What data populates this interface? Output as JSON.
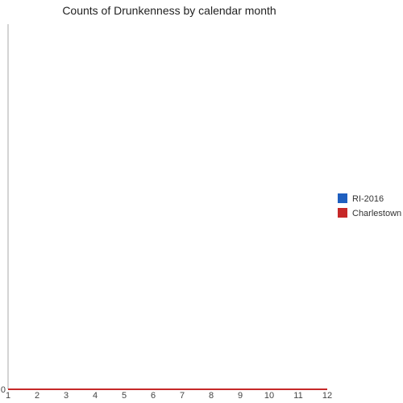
{
  "chart_data": {
    "type": "line",
    "title": "Counts of Drunkenness by calendar month",
    "xlabel": "",
    "ylabel": "",
    "x": [
      1,
      2,
      3,
      4,
      5,
      6,
      7,
      8,
      9,
      10,
      11,
      12
    ],
    "xlim": [
      1,
      12
    ],
    "ylim": [
      0,
      1
    ],
    "y_ticks": [
      0
    ],
    "series": [
      {
        "name": "RI-2016",
        "color": "#1f5fbf",
        "values": [
          0,
          0,
          0,
          0,
          0,
          0,
          0,
          0,
          0,
          0,
          0,
          0
        ]
      },
      {
        "name": "Charlestown",
        "color": "#c62828",
        "values": [
          0,
          0,
          0,
          0,
          0,
          0,
          0,
          0,
          0,
          0,
          0,
          0
        ]
      }
    ],
    "legend_position": "right",
    "grid": false
  }
}
